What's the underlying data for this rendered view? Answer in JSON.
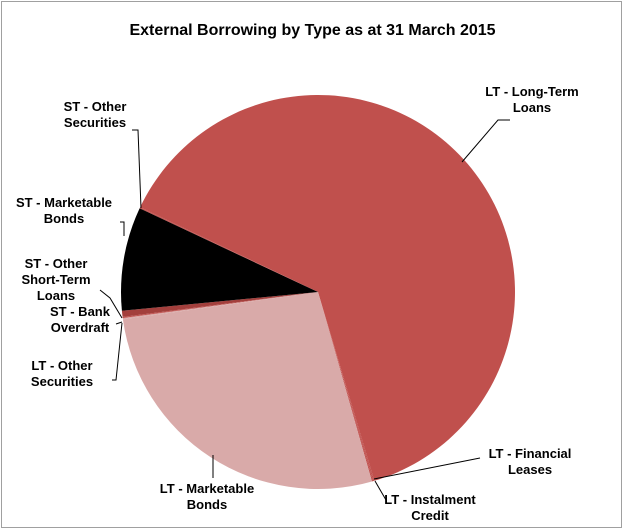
{
  "chart_data": {
    "type": "pie",
    "title": "External Borrowing by Type as at 31 March 2015",
    "categories": [
      "LT - Long-Term Loans",
      "LT - Financial Leases",
      "LT - Instalment Credit",
      "LT - Marketable Bonds",
      "LT - Other Securities",
      "ST - Bank Overdraft",
      "ST - Other Short-Term Loans",
      "ST - Marketable Bonds",
      "ST - Other Securities"
    ],
    "values": [
      63.3,
      0.1,
      0.1,
      27.2,
      0.1,
      0.1,
      0.5,
      8.5,
      0.1
    ],
    "colors": [
      "#c0504d",
      "#c0504d",
      "#c0504d",
      "#d9aaa9",
      "#d9aaa9",
      "#c0504d",
      "#a33f3c",
      "#000000",
      "#c0504d"
    ]
  }
}
